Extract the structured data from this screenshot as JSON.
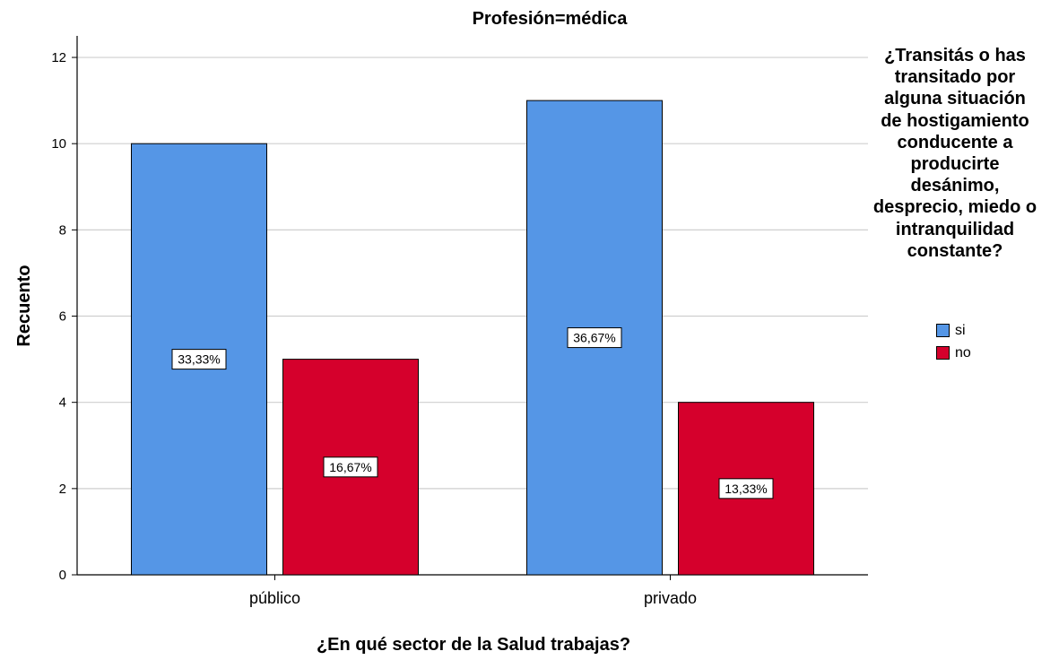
{
  "chart_data": {
    "type": "bar",
    "title": "Profesión=médica",
    "xlabel": "¿En qué sector de la Salud trabajas?",
    "ylabel": "Recuento",
    "categories": [
      "público",
      "privado"
    ],
    "ylim": [
      0,
      12.5
    ],
    "yticks": [
      0,
      2,
      4,
      6,
      8,
      10,
      12
    ],
    "grid": true,
    "legend_placement": "right",
    "legend_title": "¿Transitás o has transitado por alguna situación de hostigamiento conducente a producirte desánimo, desprecio, miedo o intranquilidad constante?",
    "series": [
      {
        "name": "si",
        "color": "#5596e6",
        "values": [
          10,
          11
        ],
        "labels": [
          "33,33%",
          "36,67%"
        ]
      },
      {
        "name": "no",
        "color": "#d5002c",
        "values": [
          5,
          4
        ],
        "labels": [
          "16,67%",
          "13,33%"
        ]
      }
    ]
  }
}
